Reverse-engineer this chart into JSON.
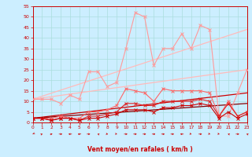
{
  "background_color": "#cceeff",
  "grid_color": "#aadddd",
  "xlim": [
    0,
    23
  ],
  "ylim": [
    0,
    55
  ],
  "yticks": [
    0,
    5,
    10,
    15,
    20,
    25,
    30,
    35,
    40,
    45,
    50,
    55
  ],
  "xticks": [
    0,
    1,
    2,
    3,
    4,
    5,
    6,
    7,
    8,
    9,
    10,
    11,
    12,
    13,
    14,
    15,
    16,
    17,
    18,
    19,
    20,
    21,
    22,
    23
  ],
  "xlabel": "Vent moyen/en rafales ( km/h )",
  "series": [
    {
      "color": "#ff9999",
      "lw": 0.8,
      "marker": "x",
      "ms": 2.5,
      "mew": 0.7,
      "x": [
        0,
        1,
        2,
        3,
        4,
        5,
        6,
        7,
        8,
        9,
        10,
        11,
        12,
        13,
        14,
        15,
        16,
        17,
        18,
        19,
        20,
        21,
        22,
        23
      ],
      "y": [
        11,
        11,
        11,
        9,
        13,
        11,
        24,
        24,
        17,
        19,
        35,
        52,
        50,
        27,
        35,
        35,
        42,
        35,
        46,
        44,
        3,
        3,
        14,
        25
      ]
    },
    {
      "color": "#ffbbbb",
      "lw": 0.9,
      "marker": null,
      "x": [
        0,
        23
      ],
      "y": [
        11,
        44
      ]
    },
    {
      "color": "#ffbbbb",
      "lw": 0.9,
      "marker": null,
      "x": [
        0,
        23
      ],
      "y": [
        11,
        25
      ]
    },
    {
      "color": "#ff6666",
      "lw": 0.8,
      "marker": "x",
      "ms": 2.5,
      "mew": 0.7,
      "x": [
        0,
        1,
        2,
        3,
        4,
        5,
        6,
        7,
        8,
        9,
        10,
        11,
        12,
        13,
        14,
        15,
        16,
        17,
        18,
        19,
        20,
        21,
        22,
        23
      ],
      "y": [
        2,
        2,
        2,
        3,
        2,
        2,
        5,
        5,
        6,
        8,
        16,
        15,
        14,
        10,
        16,
        15,
        15,
        15,
        15,
        14,
        3,
        10,
        3,
        5
      ]
    },
    {
      "color": "#dd2222",
      "lw": 0.8,
      "marker": "x",
      "ms": 2.5,
      "mew": 0.7,
      "x": [
        0,
        1,
        2,
        3,
        4,
        5,
        6,
        7,
        8,
        9,
        10,
        11,
        12,
        13,
        14,
        15,
        16,
        17,
        18,
        19,
        20,
        21,
        22,
        23
      ],
      "y": [
        2,
        2,
        1,
        2,
        2,
        1,
        3,
        3,
        4,
        5,
        9,
        9,
        8,
        8,
        10,
        10,
        10,
        10,
        11,
        10,
        3,
        9,
        3,
        5
      ]
    },
    {
      "color": "#cc0000",
      "lw": 0.8,
      "marker": "x",
      "ms": 2.5,
      "mew": 0.7,
      "x": [
        0,
        1,
        2,
        3,
        4,
        5,
        6,
        7,
        8,
        9,
        10,
        11,
        12,
        13,
        14,
        15,
        16,
        17,
        18,
        19,
        20,
        21,
        22,
        23
      ],
      "y": [
        2,
        2,
        1,
        2,
        2,
        1,
        2,
        2,
        3,
        4,
        6,
        6,
        6,
        5,
        7,
        7,
        8,
        8,
        9,
        8,
        2,
        5,
        2,
        4
      ]
    },
    {
      "color": "#cc0000",
      "lw": 0.9,
      "marker": null,
      "x": [
        0,
        23
      ],
      "y": [
        2,
        14
      ]
    },
    {
      "color": "#880000",
      "lw": 0.9,
      "marker": null,
      "x": [
        0,
        23
      ],
      "y": [
        2,
        9
      ]
    }
  ],
  "wind_arrows": {
    "x": [
      0,
      1,
      2,
      3,
      4,
      5,
      6,
      7,
      8,
      9,
      10,
      11,
      12,
      13,
      14,
      15,
      16,
      17,
      18,
      19,
      20,
      21,
      22,
      23
    ],
    "angles_deg": [
      210,
      45,
      60,
      90,
      270,
      260,
      90,
      315,
      130,
      135,
      90,
      90,
      90,
      90,
      90,
      90,
      270,
      135,
      90,
      135,
      135,
      315,
      90,
      315
    ]
  }
}
